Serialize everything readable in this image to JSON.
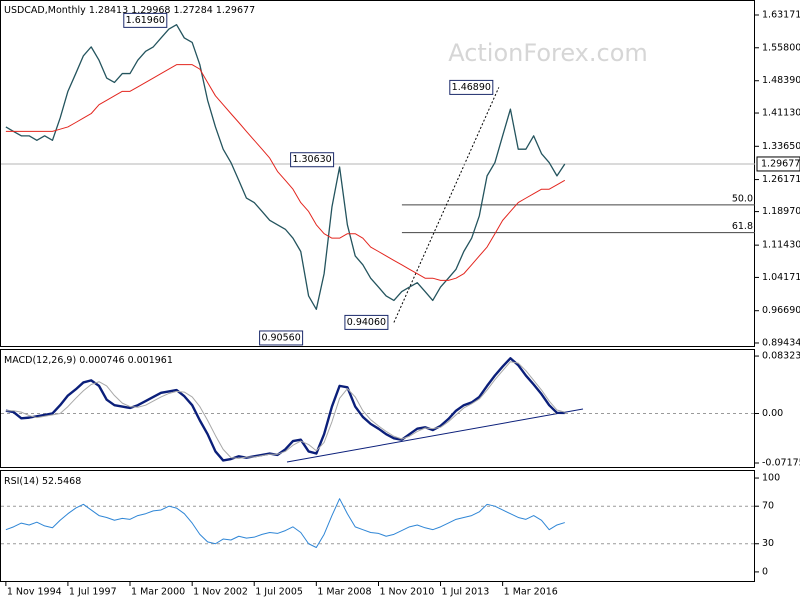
{
  "chart_data": {
    "type": "stock",
    "x": [
      "1 Nov 1994",
      "1 Mar 1995",
      "1 Jul 1995",
      "1 Nov 1995",
      "1 Mar 1996",
      "1 Jul 1996",
      "1 Nov 1996",
      "1 Mar 1997",
      "1 Jul 1997",
      "1 Nov 1997",
      "1 Mar 1998",
      "1 Jul 1998",
      "1 Nov 1998",
      "1 Mar 1999",
      "1 Jul 1999",
      "1 Nov 1999",
      "1 Mar 2000",
      "1 Jul 2000",
      "1 Nov 2000",
      "1 Mar 2001",
      "1 Jul 2001",
      "1 Nov 2001",
      "1 Mar 2002",
      "1 Jul 2002",
      "1 Nov 2002",
      "1 Mar 2003",
      "1 Jul 2003",
      "1 Nov 2003",
      "1 Mar 2004",
      "1 Jul 2004",
      "1 Nov 2004",
      "1 Mar 2005",
      "1 Jul 2005",
      "1 Nov 2005",
      "1 Mar 2006",
      "1 Jul 2006",
      "1 Nov 2006",
      "1 Mar 2007",
      "1 Jul 2007",
      "1 Nov 2007",
      "1 Mar 2008",
      "1 Jul 2008",
      "1 Nov 2008",
      "1 Mar 2009",
      "1 Jul 2009",
      "1 Nov 2009",
      "1 Mar 2010",
      "1 Jul 2010",
      "1 Nov 2010",
      "1 Mar 2011",
      "1 Jul 2011",
      "1 Nov 2011",
      "1 Mar 2012",
      "1 Jul 2012",
      "1 Nov 2012",
      "1 Mar 2013",
      "1 Jul 2013",
      "1 Nov 2013",
      "1 Mar 2014",
      "1 Jul 2014",
      "1 Nov 2014",
      "1 Mar 2015",
      "1 Jul 2015",
      "1 Nov 2015",
      "1 Mar 2016",
      "1 Jul 2016",
      "1 Nov 2016",
      "1 Mar 2017",
      "1 Jul 2017",
      "1 Nov 2017",
      "1 Mar 2018",
      "1 Jul 2018",
      "1 Nov 2018"
    ],
    "xlim": [
      "1 Aug 1994",
      "1 Jan 2027"
    ],
    "xticks": [
      "1 Nov 1994",
      "1 Jul 1997",
      "1 Mar 2000",
      "1 Nov 2002",
      "1 Jul 2005",
      "1 Mar 2008",
      "1 Nov 2010",
      "1 Jul 2013",
      "1 Mar 2016"
    ],
    "panels": [
      {
        "type": "line",
        "title": "USDCAD,Monthly",
        "watermark": "ActionForex.com",
        "last_bar": {
          "open": 1.28413,
          "high": 1.29968,
          "low": 1.27284
        },
        "ylim": [
          0.8853,
          1.6654
        ],
        "yticks": [
          1.63171,
          {
            "value": 1.558,
            "label": "1.55800"
          },
          {
            "value": 1.4839,
            "label": "1.48390"
          },
          {
            "value": 1.4113,
            "label": "1.41130"
          },
          {
            "value": 1.3365,
            "label": "1.33650"
          },
          1.26171,
          {
            "value": 1.1897,
            "label": "1.18970"
          },
          {
            "value": 1.1143,
            "label": "1.11430"
          },
          1.04171,
          {
            "value": 0.9669,
            "label": "0.96690"
          },
          0.89434
        ],
        "series": [
          {
            "name": "USDCAD",
            "color": "#24545e",
            "width": 1.3,
            "values": [
              1.38,
              1.37,
              1.36,
              1.36,
              1.35,
              1.36,
              1.35,
              1.4,
              1.46,
              1.5,
              1.54,
              1.56,
              1.53,
              1.49,
              1.48,
              1.5,
              1.5,
              1.53,
              1.55,
              1.56,
              1.58,
              1.6,
              1.61,
              1.58,
              1.57,
              1.52,
              1.44,
              1.38,
              1.33,
              1.3,
              1.26,
              1.22,
              1.21,
              1.19,
              1.17,
              1.16,
              1.15,
              1.13,
              1.1,
              1.0,
              0.97,
              1.05,
              1.2,
              1.29,
              1.16,
              1.09,
              1.07,
              1.04,
              1.02,
              1.0,
              0.99,
              1.01,
              1.02,
              1.03,
              1.01,
              0.99,
              1.02,
              1.04,
              1.06,
              1.1,
              1.13,
              1.18,
              1.27,
              1.3,
              1.36,
              1.42,
              1.33,
              1.33,
              1.36,
              1.32,
              1.3,
              1.27,
              1.29677
            ]
          },
          {
            "name": "MA",
            "color": "#e3261f",
            "width": 1,
            "values": [
              1.37,
              1.37,
              1.37,
              1.37,
              1.37,
              1.37,
              1.37,
              1.375,
              1.38,
              1.39,
              1.4,
              1.41,
              1.43,
              1.44,
              1.45,
              1.46,
              1.46,
              1.47,
              1.48,
              1.49,
              1.5,
              1.51,
              1.52,
              1.52,
              1.52,
              1.51,
              1.48,
              1.45,
              1.43,
              1.41,
              1.39,
              1.37,
              1.35,
              1.33,
              1.31,
              1.28,
              1.26,
              1.24,
              1.21,
              1.19,
              1.16,
              1.14,
              1.13,
              1.13,
              1.14,
              1.14,
              1.13,
              1.11,
              1.1,
              1.09,
              1.08,
              1.07,
              1.06,
              1.05,
              1.04,
              1.04,
              1.035,
              1.035,
              1.04,
              1.05,
              1.07,
              1.09,
              1.11,
              1.14,
              1.17,
              1.19,
              1.21,
              1.22,
              1.23,
              1.24,
              1.24,
              1.25,
              1.26
            ]
          }
        ],
        "annotations": [
          {
            "x": "1 Jan 2002",
            "value": 1.6196,
            "label": "1.61960"
          },
          {
            "x": "1 Jan 2016",
            "value": 1.4689,
            "label": "1.46890"
          },
          {
            "x": "1 Mar 2009",
            "value": 1.3063,
            "label": "1.30630"
          },
          {
            "x": "1 Nov 2007",
            "value": 0.9056,
            "label": "0.90560"
          },
          {
            "x": "1 Jul 2011",
            "value": 0.9406,
            "label": "0.94060"
          }
        ],
        "fib_levels": [
          {
            "label": "50.0",
            "value": 1.20475
          },
          {
            "label": "61.8",
            "value": 1.14241
          }
        ]
      },
      {
        "type": "line",
        "title": "MACD(12,26,9)",
        "ylim": [
          -0.079,
          0.092
        ],
        "yticks": [
          0.083235,
          {
            "value": 0,
            "label": "0.00"
          },
          -0.071752
        ],
        "levels": [
          0
        ],
        "series": [
          {
            "name": "MACD",
            "color": "#0b1f7a",
            "width": 2.4,
            "values": [
              0.004,
              0.002,
              -0.007,
              -0.006,
              -0.004,
              -0.002,
              0.0,
              0.012,
              0.026,
              0.035,
              0.045,
              0.048,
              0.04,
              0.02,
              0.012,
              0.01,
              0.008,
              0.012,
              0.018,
              0.024,
              0.03,
              0.032,
              0.034,
              0.025,
              0.012,
              -0.01,
              -0.03,
              -0.055,
              -0.068,
              -0.066,
              -0.062,
              -0.064,
              -0.062,
              -0.06,
              -0.058,
              -0.06,
              -0.052,
              -0.04,
              -0.038,
              -0.055,
              -0.058,
              -0.03,
              0.01,
              0.04,
              0.038,
              0.01,
              -0.005,
              -0.015,
              -0.022,
              -0.03,
              -0.036,
              -0.038,
              -0.03,
              -0.022,
              -0.02,
              -0.024,
              -0.018,
              -0.008,
              0.004,
              0.012,
              0.016,
              0.024,
              0.04,
              0.055,
              0.068,
              0.08,
              0.07,
              0.055,
              0.042,
              0.028,
              0.012,
              0.001,
              0.000746
            ]
          },
          {
            "name": "Signal",
            "color": "#a8a8a8",
            "width": 1,
            "values": [
              0.004,
              0.004,
              0.002,
              -0.003,
              -0.006,
              -0.004,
              -0.002,
              0.0,
              0.01,
              0.022,
              0.033,
              0.042,
              0.046,
              0.04,
              0.026,
              0.015,
              0.01,
              0.009,
              0.012,
              0.018,
              0.024,
              0.029,
              0.032,
              0.031,
              0.024,
              0.01,
              -0.01,
              -0.032,
              -0.052,
              -0.064,
              -0.065,
              -0.063,
              -0.063,
              -0.061,
              -0.059,
              -0.059,
              -0.055,
              -0.046,
              -0.04,
              -0.045,
              -0.054,
              -0.042,
              -0.012,
              0.022,
              0.036,
              0.024,
              0.004,
              -0.009,
              -0.018,
              -0.026,
              -0.033,
              -0.037,
              -0.033,
              -0.026,
              -0.021,
              -0.022,
              -0.02,
              -0.012,
              -0.002,
              0.008,
              0.014,
              0.021,
              0.034,
              0.049,
              0.062,
              0.075,
              0.073,
              0.062,
              0.048,
              0.034,
              0.018,
              0.005,
              0.001961
            ]
          }
        ]
      },
      {
        "type": "line",
        "title": "RSI(14)",
        "ylim": [
          -10.75,
          107.5
        ],
        "yticks": [
          100,
          70,
          30,
          0
        ],
        "levels": [
          70,
          30
        ],
        "series": [
          {
            "name": "RSI",
            "color": "#2f86d6",
            "width": 1,
            "values": [
              45,
              48,
              52,
              50,
              53,
              49,
              47,
              55,
              62,
              68,
              72,
              66,
              60,
              58,
              55,
              57,
              56,
              60,
              62,
              65,
              66,
              70,
              68,
              62,
              52,
              40,
              32,
              30,
              35,
              34,
              38,
              36,
              37,
              40,
              42,
              41,
              44,
              48,
              42,
              30,
              26,
              40,
              60,
              78,
              62,
              48,
              45,
              42,
              41,
              38,
              40,
              44,
              48,
              50,
              47,
              45,
              48,
              52,
              56,
              58,
              60,
              64,
              72,
              70,
              66,
              62,
              58,
              56,
              60,
              55,
              45,
              50,
              52.5468
            ]
          }
        ]
      }
    ]
  }
}
